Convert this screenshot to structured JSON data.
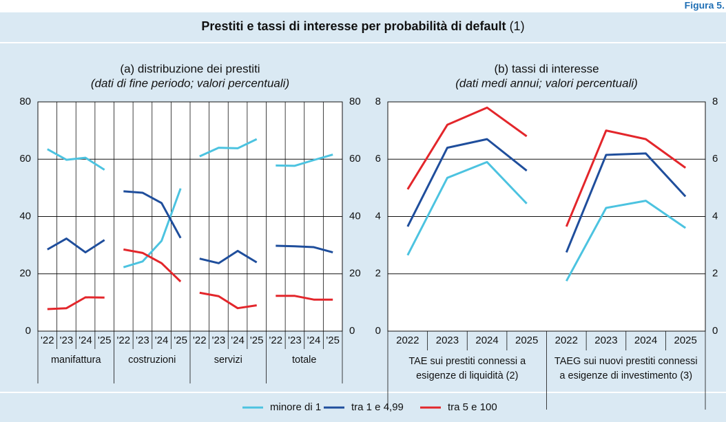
{
  "figure_label": "Figura 5.",
  "title": "Prestiti e tassi di interesse per probabilità di default",
  "title_note": "(1)",
  "chart_data": [
    {
      "type": "line",
      "title": "(a) distribuzione dei prestiti",
      "subtitle": "(dati di fine periodo; valori percentuali)",
      "categories": [
        "'22",
        "'23",
        "'24",
        "'25",
        "'22",
        "'23",
        "'24",
        "'25",
        "'22",
        "'23",
        "'24",
        "'25",
        "'22",
        "'23",
        "'24",
        "'25"
      ],
      "groups": [
        [
          "manifattura"
        ],
        [
          "costruzioni"
        ],
        [
          "servizi"
        ],
        [
          "totale"
        ]
      ],
      "ylim": [
        0,
        80
      ],
      "yticks": [
        0,
        20,
        40,
        60,
        80
      ],
      "grid": true,
      "xgrid": true,
      "series": [
        {
          "name": "minore di 1",
          "color": "#4cc3e0",
          "values": [
            63.5,
            59.8,
            60.5,
            56.3,
            22.3,
            24.3,
            31.5,
            49.8,
            61.0,
            64.0,
            63.8,
            67.0,
            57.8,
            57.7,
            59.7,
            61.6
          ]
        },
        {
          "name": "tra 1 e 4,99",
          "color": "#1f4e9c",
          "values": [
            28.5,
            32.3,
            27.5,
            31.8,
            48.8,
            48.3,
            44.7,
            32.5,
            25.3,
            23.7,
            28.0,
            24.0,
            29.8,
            29.6,
            29.3,
            27.5
          ]
        },
        {
          "name": "tra 5 e 100",
          "color": "#e3262b",
          "values": [
            7.7,
            8.0,
            11.8,
            11.7,
            28.5,
            27.3,
            23.7,
            17.3,
            13.4,
            12.2,
            8.0,
            9.0,
            12.3,
            12.3,
            11.0,
            11.0
          ]
        }
      ]
    },
    {
      "type": "line",
      "title": "(b) tassi di interesse",
      "subtitle": "(dati medi annui; valori percentuali)",
      "categories": [
        "2022",
        "2023",
        "2024",
        "2025",
        "2022",
        "2023",
        "2024",
        "2025"
      ],
      "groups": [
        [
          "TAE sui prestiti connessi a",
          "esigenze di liquidità (2)"
        ],
        [
          "TAEG sui nuovi prestiti connessi",
          "a esigenze di investimento (3)"
        ]
      ],
      "ylim": [
        0,
        8
      ],
      "yticks": [
        0,
        2,
        4,
        6,
        8
      ],
      "grid": true,
      "xgrid": false,
      "series": [
        {
          "color": "#4cc3e0",
          "values": [
            2.65,
            5.35,
            5.9,
            4.45,
            1.75,
            4.3,
            4.55,
            3.6
          ]
        },
        {
          "color": "#1f4e9c",
          "values": [
            3.65,
            6.4,
            6.7,
            5.6,
            2.75,
            6.15,
            6.2,
            4.7
          ]
        },
        {
          "color": "#e3262b",
          "values": [
            4.95,
            7.2,
            7.8,
            6.8,
            3.65,
            7.0,
            6.7,
            5.7
          ]
        }
      ]
    }
  ]
}
